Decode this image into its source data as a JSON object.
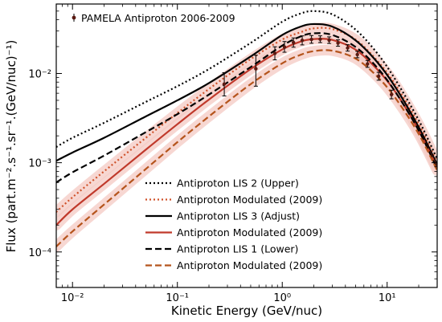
{
  "chart_data": {
    "type": "line",
    "xlabel": "Kinetic Energy (GeV/nuc)",
    "ylabel": "Flux (part.m⁻².s⁻¹.sr⁻¹.(GeV/nuc)⁻¹)",
    "xscale": "log",
    "yscale": "log",
    "xlim": [
      0.007,
      30
    ],
    "ylim": [
      4e-05,
      0.06
    ],
    "x_ticks": [
      {
        "value": 0.01,
        "label": "10⁻²"
      },
      {
        "value": 0.1,
        "label": "10⁻¹"
      },
      {
        "value": 1,
        "label": "10⁰"
      },
      {
        "value": 10,
        "label": "10¹"
      }
    ],
    "y_ticks": [
      {
        "value": 0.0001,
        "label": "10⁻⁴"
      },
      {
        "value": 0.001,
        "label": "10⁻³"
      },
      {
        "value": 0.01,
        "label": "10⁻²"
      }
    ],
    "legend_position": "lower-right",
    "grid": false,
    "data_series": {
      "name": "PAMELA Antiproton 2006-2009",
      "color": "#5a1a12",
      "points": [
        {
          "x": 0.28,
          "y": 0.0076,
          "ylo": 0.0056,
          "yhi": 0.0102
        },
        {
          "x": 0.56,
          "y": 0.0113,
          "ylo": 0.0072,
          "yhi": 0.016
        },
        {
          "x": 0.85,
          "y": 0.0168,
          "ylo": 0.0142,
          "yhi": 0.0199
        },
        {
          "x": 1.05,
          "y": 0.0198,
          "ylo": 0.0173,
          "yhi": 0.0228
        },
        {
          "x": 1.28,
          "y": 0.0222,
          "ylo": 0.0197,
          "yhi": 0.025
        },
        {
          "x": 1.55,
          "y": 0.0235,
          "ylo": 0.0209,
          "yhi": 0.0264
        },
        {
          "x": 1.9,
          "y": 0.0241,
          "ylo": 0.0218,
          "yhi": 0.0266
        },
        {
          "x": 2.3,
          "y": 0.0242,
          "ylo": 0.0222,
          "yhi": 0.0264
        },
        {
          "x": 2.8,
          "y": 0.0236,
          "ylo": 0.0217,
          "yhi": 0.0257
        },
        {
          "x": 3.4,
          "y": 0.0219,
          "ylo": 0.0202,
          "yhi": 0.0238
        },
        {
          "x": 4.2,
          "y": 0.0193,
          "ylo": 0.0178,
          "yhi": 0.021
        },
        {
          "x": 5.2,
          "y": 0.0163,
          "ylo": 0.015,
          "yhi": 0.0177
        },
        {
          "x": 6.5,
          "y": 0.0128,
          "ylo": 0.0117,
          "yhi": 0.014
        },
        {
          "x": 8.3,
          "y": 0.0093,
          "ylo": 0.0084,
          "yhi": 0.0103
        },
        {
          "x": 11,
          "y": 0.0058,
          "ylo": 0.0052,
          "yhi": 0.0065
        }
      ]
    },
    "series": [
      {
        "name": "Antiproton LIS 2 (Upper)",
        "color": "#000000",
        "style": "dotted",
        "x": [
          0.007,
          0.01,
          0.02,
          0.05,
          0.1,
          0.2,
          0.5,
          1,
          1.5,
          2,
          3,
          5,
          8,
          12,
          20,
          30
        ],
        "y": [
          0.0015,
          0.0019,
          0.0028,
          0.0048,
          0.0072,
          0.0112,
          0.022,
          0.038,
          0.047,
          0.05,
          0.046,
          0.031,
          0.017,
          0.0085,
          0.003,
          0.0011
        ]
      },
      {
        "name": "Antiproton Modulated (2009)",
        "color": "#d0522a",
        "style": "dotted",
        "band": true,
        "x": [
          0.007,
          0.01,
          0.02,
          0.05,
          0.1,
          0.2,
          0.5,
          1,
          1.5,
          2,
          3,
          5,
          8,
          12,
          20,
          30
        ],
        "y": [
          0.00028,
          0.00041,
          0.0008,
          0.0019,
          0.0036,
          0.0067,
          0.0145,
          0.024,
          0.029,
          0.032,
          0.0315,
          0.024,
          0.014,
          0.0075,
          0.0027,
          0.001
        ]
      },
      {
        "name": "Antiproton LIS 3 (Adjust)",
        "color": "#000000",
        "style": "solid",
        "x": [
          0.007,
          0.01,
          0.02,
          0.05,
          0.1,
          0.2,
          0.5,
          1,
          1.5,
          2,
          3,
          5,
          8,
          12,
          20,
          30
        ],
        "y": [
          0.00105,
          0.0013,
          0.0019,
          0.0033,
          0.005,
          0.0078,
          0.0155,
          0.027,
          0.0335,
          0.0358,
          0.0335,
          0.0235,
          0.0135,
          0.007,
          0.0025,
          0.00095
        ]
      },
      {
        "name": "Antiproton Modulated (2009)",
        "color": "#c0392b",
        "style": "solid",
        "band": true,
        "x": [
          0.007,
          0.01,
          0.02,
          0.05,
          0.1,
          0.2,
          0.5,
          1,
          1.5,
          2,
          3,
          5,
          8,
          12,
          20,
          30
        ],
        "y": [
          0.0002,
          0.0003,
          0.00058,
          0.0014,
          0.0027,
          0.0051,
          0.0112,
          0.0186,
          0.0228,
          0.0243,
          0.0238,
          0.0185,
          0.0112,
          0.0062,
          0.0023,
          0.00088
        ]
      },
      {
        "name": "Antiproton LIS 1 (Lower)",
        "color": "#000000",
        "style": "dashed",
        "x": [
          0.007,
          0.01,
          0.02,
          0.05,
          0.1,
          0.2,
          0.5,
          1,
          1.5,
          2,
          3,
          5,
          8,
          12,
          20,
          30
        ],
        "y": [
          0.0006,
          0.00078,
          0.0012,
          0.0022,
          0.0035,
          0.0058,
          0.0118,
          0.0205,
          0.026,
          0.0282,
          0.027,
          0.0198,
          0.0117,
          0.0062,
          0.0023,
          0.00085
        ]
      },
      {
        "name": "Antiproton Modulated (2009)",
        "color": "#b5541c",
        "style": "dashed",
        "band": true,
        "x": [
          0.007,
          0.01,
          0.02,
          0.05,
          0.1,
          0.2,
          0.5,
          1,
          1.5,
          2,
          3,
          5,
          8,
          12,
          20,
          30
        ],
        "y": [
          0.000115,
          0.00017,
          0.00034,
          0.00085,
          0.0017,
          0.0033,
          0.0076,
          0.013,
          0.0162,
          0.0178,
          0.018,
          0.0147,
          0.0093,
          0.0053,
          0.0021,
          0.00082
        ]
      }
    ]
  }
}
